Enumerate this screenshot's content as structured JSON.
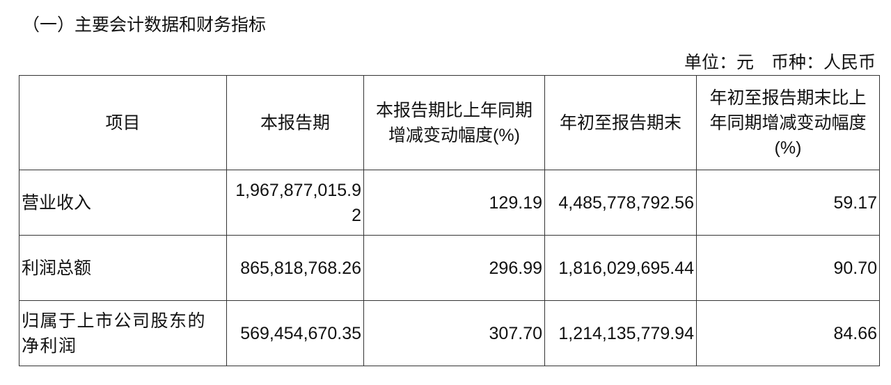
{
  "title": "（一）主要会计数据和财务指标",
  "unit": "单位：元　币种：人民币",
  "table": {
    "headers": [
      "项目",
      "本报告期",
      "本报告期比上年同期增减变动幅度(%)",
      "年初至报告期末",
      "年初至报告期末比上年同期增减变动幅度(%)"
    ],
    "rows": [
      [
        "营业收入",
        "1,967,877,015.92",
        "129.19",
        "4,485,778,792.56",
        "59.17"
      ],
      [
        "利润总额",
        "865,818,768.26",
        "296.99",
        "1,816,029,695.44",
        "90.70"
      ],
      [
        "归属于上市公司股东的净利润",
        "569,454,670.35",
        "307.70",
        "1,214,135,779.94",
        "84.66"
      ]
    ]
  }
}
